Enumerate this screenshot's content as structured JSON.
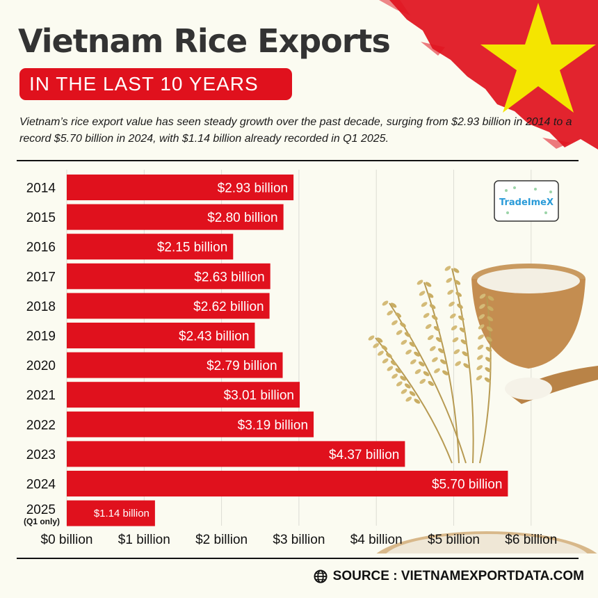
{
  "header": {
    "title": "Vietnam Rice Exports",
    "badge": "IN THE LAST 10 YEARS",
    "description": "Vietnam’s rice export value has seen steady growth over the past decade, surging from $2.93 billion in 2014 to a record $5.70 billion in 2024, with $1.14 billion already recorded in Q1 2025."
  },
  "logo": {
    "text": "TradeImeX"
  },
  "footer": {
    "source": "SOURCE : VIETNAMEXPORTDATA.COM",
    "icon": "globe-icon"
  },
  "colors": {
    "bar": "#e0111d",
    "badge": "#e0111d",
    "flag_star": "#f4e500",
    "background": "#fbfbf1"
  },
  "chart_data": {
    "type": "bar",
    "orientation": "horizontal",
    "categories": [
      "2014",
      "2015",
      "2016",
      "2017",
      "2018",
      "2019",
      "2020",
      "2021",
      "2022",
      "2023",
      "2024",
      "2025"
    ],
    "category_notes": [
      "",
      "",
      "",
      "",
      "",
      "",
      "",
      "",
      "",
      "",
      "",
      "(Q1 only)"
    ],
    "values": [
      2.93,
      2.8,
      2.15,
      2.63,
      2.62,
      2.43,
      2.79,
      3.01,
      3.19,
      4.37,
      5.7,
      1.14
    ],
    "data_labels": [
      "$2.93 billion",
      "$2.80 billion",
      "$2.15 billion",
      "$2.63 billion",
      "$2.62 billion",
      "$2.43 billion",
      "$2.79 billion",
      "$3.01 billion",
      "$3.19 billion",
      "$4.37 billion",
      "$5.70 billion",
      "$1.14 billion"
    ],
    "xlim": [
      0,
      6
    ],
    "x_ticks": [
      0,
      1,
      2,
      3,
      4,
      5,
      6
    ],
    "x_tick_labels": [
      "$0 billion",
      "$1 billion",
      "$2 billion",
      "$3 billion",
      "$4 billion",
      "$5 billion",
      "$6 billion"
    ],
    "grid": true
  }
}
